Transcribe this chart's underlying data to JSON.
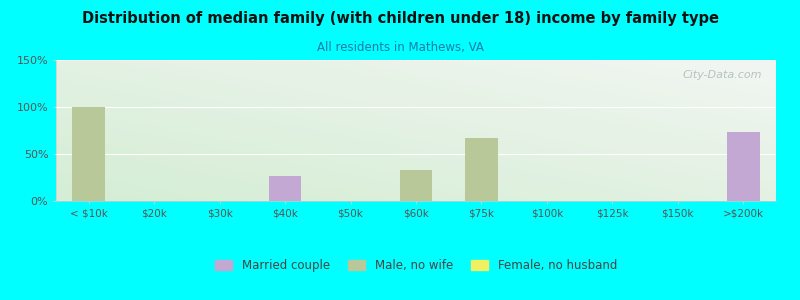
{
  "title": "Distribution of median family (with children under 18) income by family type",
  "subtitle": "All residents in Mathews, VA",
  "background_color": "#00FFFF",
  "categories": [
    "< $10k",
    "$20k",
    "$30k",
    "$40k",
    "$50k",
    "$60k",
    "$75k",
    "$100k",
    "$125k",
    "$150k",
    ">$200k"
  ],
  "married_couple": [
    0,
    0,
    0,
    27,
    0,
    0,
    0,
    0,
    0,
    0,
    73
  ],
  "male_no_wife": [
    100,
    0,
    0,
    0,
    0,
    33,
    67,
    0,
    0,
    0,
    0
  ],
  "female_no_husb": [
    0,
    0,
    0,
    0,
    0,
    0,
    0,
    0,
    0,
    0,
    0
  ],
  "married_color": "#c4a8d4",
  "male_color": "#b8c898",
  "female_color": "#f0f060",
  "ylim": [
    0,
    150
  ],
  "yticks": [
    0,
    50,
    100,
    150
  ],
  "ytick_labels": [
    "0%",
    "50%",
    "100%",
    "150%"
  ],
  "bar_width": 0.5,
  "legend_labels": [
    "Married couple",
    "Male, no wife",
    "Female, no husband"
  ],
  "watermark": "City-Data.com"
}
